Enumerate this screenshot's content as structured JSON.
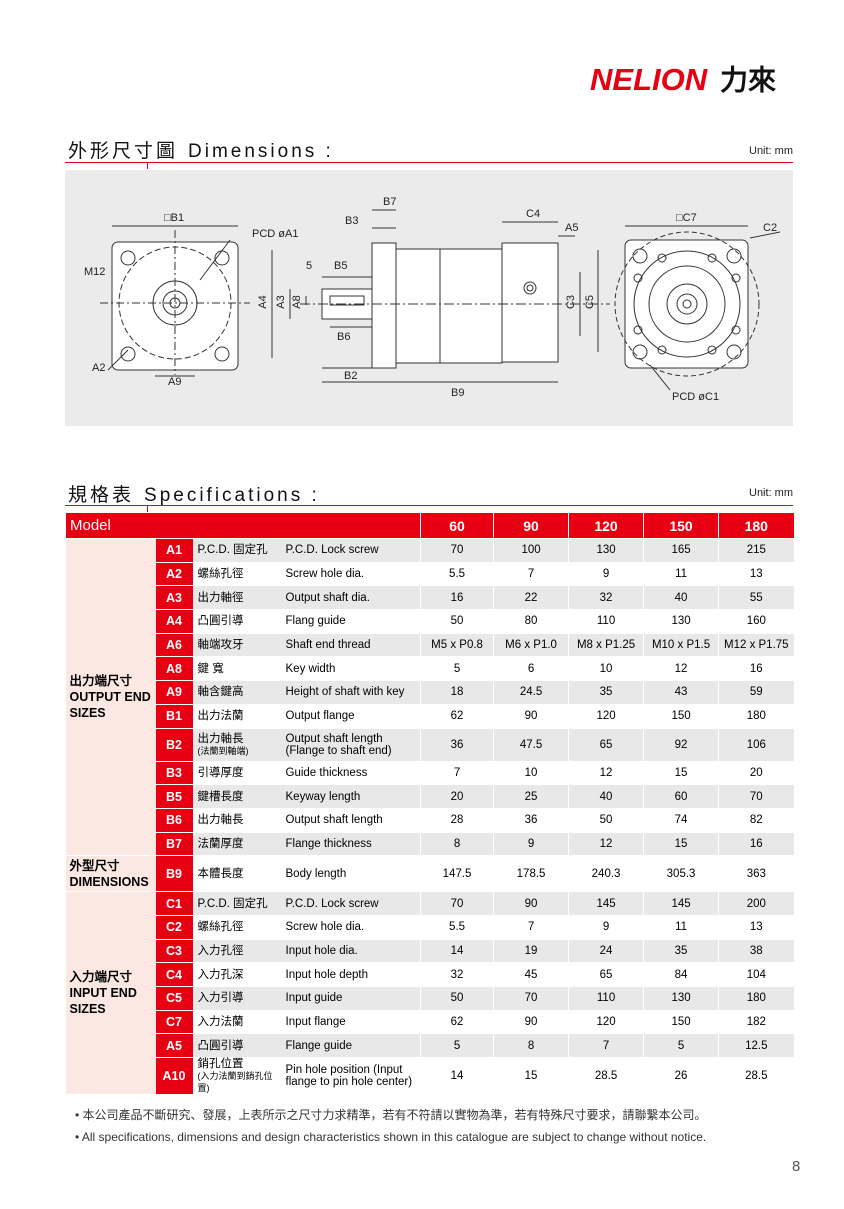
{
  "header": {
    "logo": "NELION",
    "logo_cn": "力來"
  },
  "dimensions": {
    "title_cn": "外形尺寸圖",
    "title_en": "Dimensions :",
    "unit": "Unit: mm",
    "labels": [
      "□B1",
      "PCD øA1",
      "M12",
      "A2",
      "A9",
      "B7",
      "B3",
      "5",
      "B5",
      "A4",
      "A3",
      "A8",
      "B6",
      "B2",
      "B9",
      "C4",
      "A5",
      "C3",
      "C5",
      "□C7",
      "C2",
      "PCD øC1"
    ]
  },
  "specifications": {
    "title_cn": "規格表",
    "title_en": "Specifications :",
    "unit": "Unit: mm",
    "table": {
      "header": [
        "Model",
        "60",
        "90",
        "120",
        "150",
        "180"
      ],
      "groups": [
        {
          "label_cn": "出力端尺寸",
          "label_en": "OUTPUT END SIZES",
          "rows": [
            {
              "code": "A1",
              "name_cn": "P.C.D. 固定孔",
              "name_en": "P.C.D. Lock screw",
              "values": [
                70,
                100,
                130,
                165,
                215
              ]
            },
            {
              "code": "A2",
              "name_cn": "螺絲孔徑",
              "name_en": "Screw hole dia.",
              "values": [
                5.5,
                7,
                9,
                11,
                13
              ]
            },
            {
              "code": "A3",
              "name_cn": "出力軸徑",
              "name_en": "Output shaft dia.",
              "values": [
                16,
                22,
                32,
                40,
                55
              ]
            },
            {
              "code": "A4",
              "name_cn": "凸圓引導",
              "name_en": "Flang guide",
              "values": [
                50,
                80,
                110,
                130,
                160
              ]
            },
            {
              "code": "A6",
              "name_cn": "軸端攻牙",
              "name_en": "Shaft end thread",
              "values": [
                "M5 x P0.8",
                "M6 x P1.0",
                "M8 x P1.25",
                "M10 x P1.5",
                "M12 x P1.75"
              ]
            },
            {
              "code": "A8",
              "name_cn": "鍵 寬",
              "name_en": "Key width",
              "values": [
                5,
                6,
                10,
                12,
                16
              ]
            },
            {
              "code": "A9",
              "name_cn": "軸含鍵高",
              "name_en": "Height of shaft with key",
              "values": [
                18,
                24.5,
                35,
                43,
                59
              ]
            },
            {
              "code": "B1",
              "name_cn": "出力法蘭",
              "name_en": "Output flange",
              "values": [
                62,
                90,
                120,
                150,
                180
              ]
            },
            {
              "code": "B2",
              "name_cn": "出力軸長",
              "name_cn_note": "(法蘭到軸端)",
              "name_en": "Output shaft length",
              "name_en2": "(Flange to shaft end)",
              "values": [
                36,
                47.5,
                65,
                92,
                106
              ]
            },
            {
              "code": "B3",
              "name_cn": "引導厚度",
              "name_en": "Guide thickness",
              "values": [
                7,
                10,
                12,
                15,
                20
              ]
            },
            {
              "code": "B5",
              "name_cn": "鍵槽長度",
              "name_en": "Keyway length",
              "values": [
                20,
                25,
                40,
                60,
                70
              ]
            },
            {
              "code": "B6",
              "name_cn": "出力軸長",
              "name_en": "Output shaft length",
              "values": [
                28,
                36,
                50,
                74,
                82
              ]
            },
            {
              "code": "B7",
              "name_cn": "法蘭厚度",
              "name_en": "Flange thickness",
              "values": [
                8,
                9,
                12,
                15,
                16
              ]
            }
          ]
        },
        {
          "label_cn": "外型尺寸",
          "label_en": "DIMENSIONS",
          "rows": [
            {
              "code": "B9",
              "name_cn": "本體長度",
              "name_en": "Body length",
              "values": [
                147.5,
                178.5,
                240.3,
                305.3,
                363
              ]
            }
          ]
        },
        {
          "label_cn": "入力端尺寸",
          "label_en": "INPUT END SIZES",
          "rows": [
            {
              "code": "C1",
              "name_cn": "P.C.D. 固定孔",
              "name_en": "P.C.D. Lock screw",
              "values": [
                70,
                90,
                145,
                145,
                200
              ]
            },
            {
              "code": "C2",
              "name_cn": "螺絲孔徑",
              "name_en": "Screw hole dia.",
              "values": [
                5.5,
                7,
                9,
                11,
                13
              ]
            },
            {
              "code": "C3",
              "name_cn": "入力孔徑",
              "name_en": "Input hole dia.",
              "values": [
                14,
                19,
                24,
                35,
                38
              ]
            },
            {
              "code": "C4",
              "name_cn": "入力孔深",
              "name_en": "Input hole depth",
              "values": [
                32,
                45,
                65,
                84,
                104
              ]
            },
            {
              "code": "C5",
              "name_cn": "入力引導",
              "name_en": "Input guide",
              "values": [
                50,
                70,
                110,
                130,
                180
              ]
            },
            {
              "code": "C7",
              "name_cn": "入力法蘭",
              "name_en": "Input flange",
              "values": [
                62,
                90,
                120,
                150,
                182
              ]
            },
            {
              "code": "A5",
              "name_cn": "凸圓引導",
              "name_en": "Flange guide",
              "values": [
                5,
                8,
                7,
                5,
                12.5
              ]
            },
            {
              "code": "A10",
              "name_cn": "銷孔位置",
              "name_cn_note": "(入力法蘭到銷孔位置)",
              "name_en": "Pin hole position (Input",
              "name_en2": "flange to pin hole center)",
              "values": [
                14,
                15,
                28.5,
                26,
                28.5
              ]
            }
          ]
        }
      ]
    }
  },
  "notes": [
    "• 本公司產品不斷研究、發展，上表所示之尺寸力求精準，若有不符請以實物為準，若有特殊尺寸要求，請聯繫本公司。",
    "• All specifications, dimensions and design characteristics shown in this catalogue are subject to change without notice."
  ],
  "page_number": "8"
}
